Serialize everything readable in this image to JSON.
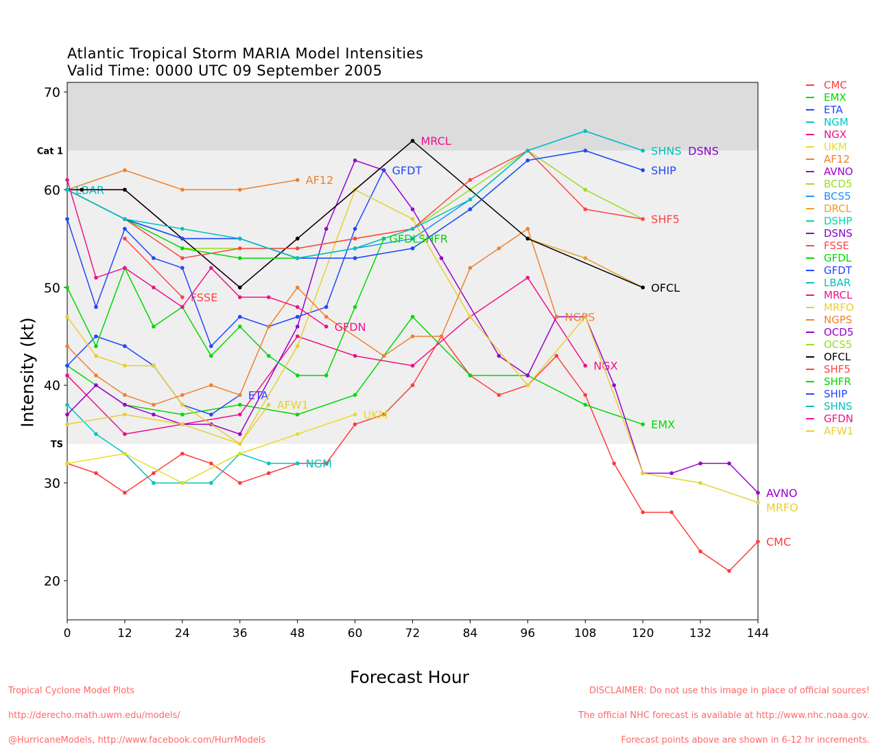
{
  "chart_data": {
    "type": "line",
    "title": "Atlantic Tropical Storm MARIA Model Intensities",
    "subtitle": "Valid Time: 0000 UTC 09 September 2005",
    "xlabel": "Forecast Hour",
    "ylabel": "Intensity (kt)",
    "xlim": [
      0,
      144
    ],
    "ylim": [
      16,
      71
    ],
    "xticks": [
      0,
      12,
      24,
      36,
      48,
      60,
      72,
      84,
      96,
      108,
      120,
      132,
      144
    ],
    "yticks": [
      20,
      30,
      40,
      50,
      60,
      70
    ],
    "thresholds": [
      {
        "label": "Cat 1",
        "value": 64
      },
      {
        "label": "TS",
        "value": 34
      }
    ],
    "legend_position": "right",
    "series": [
      {
        "name": "CMC",
        "color": "#ff3b3b",
        "label_at": 144,
        "points": [
          [
            0,
            32
          ],
          [
            6,
            31
          ],
          [
            12,
            29
          ],
          [
            18,
            31
          ],
          [
            24,
            33
          ],
          [
            30,
            32
          ],
          [
            36,
            30
          ],
          [
            42,
            31
          ],
          [
            48,
            32
          ],
          [
            54,
            32
          ],
          [
            60,
            36
          ],
          [
            66,
            37
          ],
          [
            72,
            40
          ],
          [
            78,
            45
          ],
          [
            84,
            41
          ],
          [
            90,
            39
          ],
          [
            96,
            40
          ],
          [
            102,
            43
          ],
          [
            108,
            39
          ],
          [
            114,
            32
          ],
          [
            120,
            27
          ],
          [
            126,
            27
          ],
          [
            132,
            23
          ],
          [
            138,
            21
          ],
          [
            144,
            24
          ]
        ]
      },
      {
        "name": "EMX",
        "color": "#00d800",
        "label_at": 120,
        "points": [
          [
            0,
            42
          ],
          [
            6,
            40
          ],
          [
            12,
            38
          ],
          [
            24,
            37
          ],
          [
            36,
            38
          ],
          [
            48,
            37
          ],
          [
            60,
            39
          ],
          [
            72,
            47
          ],
          [
            84,
            41
          ],
          [
            96,
            41
          ],
          [
            108,
            38
          ],
          [
            120,
            36
          ]
        ]
      },
      {
        "name": "ETA",
        "color": "#2244ff",
        "label_at": 36,
        "points": [
          [
            0,
            42
          ],
          [
            6,
            45
          ],
          [
            12,
            44
          ],
          [
            18,
            42
          ],
          [
            24,
            38
          ],
          [
            30,
            37
          ],
          [
            36,
            39
          ]
        ]
      },
      {
        "name": "NGM",
        "color": "#00c4c4",
        "label_at": 48,
        "points": [
          [
            0,
            38
          ],
          [
            6,
            35
          ],
          [
            12,
            33
          ],
          [
            18,
            30
          ],
          [
            24,
            30
          ],
          [
            30,
            30
          ],
          [
            36,
            33
          ],
          [
            42,
            32
          ],
          [
            48,
            32
          ]
        ]
      },
      {
        "name": "NGX",
        "color": "#ee1188",
        "label_at": 108,
        "points": [
          [
            0,
            41
          ],
          [
            12,
            35
          ],
          [
            24,
            36
          ],
          [
            36,
            37
          ],
          [
            48,
            45
          ],
          [
            60,
            43
          ],
          [
            72,
            42
          ],
          [
            84,
            47
          ],
          [
            96,
            51
          ],
          [
            108,
            42
          ]
        ]
      },
      {
        "name": "UKM",
        "color": "#e6dc28",
        "label_at": 60,
        "points": [
          [
            0,
            32
          ],
          [
            12,
            33
          ],
          [
            24,
            30
          ],
          [
            36,
            33
          ],
          [
            48,
            35
          ],
          [
            60,
            37
          ]
        ]
      },
      {
        "name": "AF12",
        "color": "#f08028",
        "label_at": 48,
        "points": [
          [
            0,
            60
          ],
          [
            12,
            62
          ],
          [
            24,
            60
          ],
          [
            36,
            60
          ],
          [
            48,
            61
          ]
        ]
      },
      {
        "name": "AVNO",
        "color": "#9900cc",
        "label_at": 144,
        "points": [
          [
            0,
            37
          ],
          [
            6,
            40
          ],
          [
            12,
            38
          ],
          [
            18,
            37
          ],
          [
            24,
            36
          ],
          [
            30,
            36
          ],
          [
            36,
            35
          ],
          [
            48,
            46
          ],
          [
            54,
            56
          ],
          [
            60,
            63
          ],
          [
            66,
            62
          ],
          [
            72,
            58
          ],
          [
            78,
            53
          ],
          [
            90,
            43
          ],
          [
            96,
            41
          ],
          [
            102,
            47
          ],
          [
            108,
            47
          ],
          [
            114,
            40
          ],
          [
            120,
            31
          ],
          [
            126,
            31
          ],
          [
            132,
            32
          ],
          [
            138,
            32
          ],
          [
            144,
            29
          ]
        ]
      },
      {
        "name": "BCD5",
        "color": "#99dd22",
        "label_at": null,
        "points": [
          [
            0,
            60
          ],
          [
            12,
            57
          ],
          [
            24,
            54
          ],
          [
            36,
            54
          ],
          [
            48,
            54
          ],
          [
            60,
            55
          ],
          [
            72,
            56
          ],
          [
            84,
            60
          ],
          [
            96,
            64
          ],
          [
            108,
            60
          ],
          [
            120,
            57
          ]
        ]
      },
      {
        "name": "BCS5",
        "color": "#1890ff",
        "label_at": null,
        "points": [
          [
            0,
            60
          ],
          [
            12,
            57
          ],
          [
            24,
            55
          ],
          [
            36,
            55
          ],
          [
            48,
            53
          ],
          [
            60,
            54
          ],
          [
            72,
            55
          ],
          [
            84,
            59
          ],
          [
            96,
            64
          ],
          [
            108,
            66
          ],
          [
            120,
            64
          ]
        ]
      },
      {
        "name": "DRCL",
        "color": "#e8a020",
        "label_at": null,
        "points": [
          [
            96,
            55
          ],
          [
            108,
            53
          ],
          [
            120,
            50
          ]
        ]
      },
      {
        "name": "DSHP",
        "color": "#00d8a0",
        "label_at": null,
        "points": [
          [
            0,
            60
          ],
          [
            12,
            57
          ],
          [
            24,
            55
          ],
          [
            36,
            55
          ],
          [
            48,
            53
          ],
          [
            60,
            53
          ],
          [
            72,
            54
          ],
          [
            84,
            58
          ],
          [
            96,
            63
          ],
          [
            108,
            64
          ],
          [
            120,
            62
          ]
        ]
      },
      {
        "name": "DSNS",
        "color": "#8800cc",
        "label_at": null,
        "points": []
      },
      {
        "name": "FSSE",
        "color": "#ff4444",
        "label_at": 24,
        "points": [
          [
            12,
            55
          ],
          [
            24,
            49
          ]
        ]
      },
      {
        "name": "GFDL",
        "color": "#00d800",
        "label_at": null,
        "points": [
          [
            0,
            50
          ],
          [
            6,
            44
          ],
          [
            12,
            52
          ],
          [
            18,
            46
          ],
          [
            24,
            48
          ],
          [
            30,
            43
          ],
          [
            36,
            46
          ],
          [
            42,
            43
          ],
          [
            48,
            41
          ],
          [
            54,
            41
          ],
          [
            60,
            48
          ],
          [
            66,
            55
          ]
        ]
      },
      {
        "name": "GFDT",
        "color": "#2244ff",
        "label_at": 66,
        "points": [
          [
            0,
            57
          ],
          [
            6,
            48
          ],
          [
            12,
            56
          ],
          [
            18,
            53
          ],
          [
            24,
            52
          ],
          [
            30,
            44
          ],
          [
            36,
            47
          ],
          [
            42,
            46
          ],
          [
            48,
            47
          ],
          [
            54,
            48
          ],
          [
            60,
            56
          ],
          [
            66,
            62
          ]
        ]
      },
      {
        "name": "LBAR",
        "color": "#00c0c0",
        "label_at": 0,
        "points": [
          [
            0,
            60
          ]
        ]
      },
      {
        "name": "MRCL",
        "color": "#ee1188",
        "label_at": 72,
        "points": [
          [
            0,
            60
          ],
          [
            12,
            60
          ],
          [
            36,
            50
          ],
          [
            48,
            55
          ],
          [
            72,
            65
          ]
        ]
      },
      {
        "name": "MRFO",
        "color": "#e6d030",
        "label_at": 144,
        "points": [
          [
            0,
            47
          ],
          [
            6,
            43
          ],
          [
            12,
            42
          ],
          [
            18,
            42
          ],
          [
            24,
            38
          ],
          [
            36,
            34
          ],
          [
            48,
            44
          ],
          [
            60,
            60
          ],
          [
            72,
            57
          ],
          [
            84,
            47
          ],
          [
            96,
            40
          ],
          [
            108,
            47
          ],
          [
            120,
            31
          ],
          [
            132,
            30
          ],
          [
            144,
            28
          ]
        ]
      },
      {
        "name": "NGPS",
        "color": "#f08030",
        "label_at": 102,
        "points": [
          [
            0,
            44
          ],
          [
            6,
            41
          ],
          [
            12,
            39
          ],
          [
            18,
            38
          ],
          [
            24,
            39
          ],
          [
            30,
            40
          ],
          [
            36,
            39
          ],
          [
            42,
            46
          ],
          [
            48,
            50
          ],
          [
            54,
            47
          ],
          [
            66,
            43
          ],
          [
            72,
            45
          ],
          [
            78,
            45
          ],
          [
            84,
            52
          ],
          [
            90,
            54
          ],
          [
            96,
            56
          ],
          [
            102,
            47
          ]
        ]
      },
      {
        "name": "OCD5",
        "color": "#9900cc",
        "label_at": null,
        "points": []
      },
      {
        "name": "OCS5",
        "color": "#99dd22",
        "label_at": null,
        "points": []
      },
      {
        "name": "OFCL",
        "color": "#000000",
        "label_at": 120,
        "points": [
          [
            0,
            60
          ],
          [
            3,
            60
          ],
          [
            12,
            60
          ],
          [
            36,
            50
          ],
          [
            48,
            55
          ],
          [
            72,
            65
          ],
          [
            96,
            55
          ],
          [
            120,
            50
          ]
        ]
      },
      {
        "name": "SHF5",
        "color": "#ff4444",
        "label_at": 120,
        "points": [
          [
            0,
            60
          ],
          [
            12,
            57
          ],
          [
            24,
            53
          ],
          [
            36,
            54
          ],
          [
            48,
            54
          ],
          [
            60,
            55
          ],
          [
            72,
            56
          ],
          [
            84,
            61
          ],
          [
            96,
            64
          ],
          [
            108,
            58
          ],
          [
            120,
            57
          ]
        ]
      },
      {
        "name": "SHFR",
        "color": "#00d800",
        "label_at": null,
        "points": [
          [
            0,
            60
          ],
          [
            12,
            57
          ],
          [
            24,
            54
          ],
          [
            36,
            53
          ],
          [
            48,
            53
          ],
          [
            60,
            54
          ],
          [
            66,
            55
          ]
        ]
      },
      {
        "name": "SHIP",
        "color": "#2244ff",
        "label_at": 120,
        "points": [
          [
            0,
            60
          ],
          [
            12,
            57
          ],
          [
            24,
            55
          ],
          [
            36,
            55
          ],
          [
            48,
            53
          ],
          [
            60,
            53
          ],
          [
            72,
            54
          ],
          [
            84,
            58
          ],
          [
            96,
            63
          ],
          [
            108,
            64
          ],
          [
            120,
            62
          ]
        ]
      },
      {
        "name": "SHNS",
        "color": "#00c0c0",
        "label_at": 120,
        "points": [
          [
            0,
            60
          ],
          [
            12,
            57
          ],
          [
            24,
            56
          ],
          [
            36,
            55
          ],
          [
            48,
            53
          ],
          [
            60,
            54
          ],
          [
            72,
            56
          ],
          [
            84,
            59
          ],
          [
            96,
            64
          ],
          [
            108,
            66
          ],
          [
            120,
            64
          ]
        ]
      },
      {
        "name": "GFDN",
        "color": "#ee1188",
        "label_at": 54,
        "points": [
          [
            0,
            61
          ],
          [
            6,
            51
          ],
          [
            12,
            52
          ],
          [
            18,
            50
          ],
          [
            24,
            48
          ],
          [
            30,
            52
          ],
          [
            36,
            49
          ],
          [
            42,
            49
          ],
          [
            48,
            48
          ],
          [
            54,
            46
          ]
        ]
      },
      {
        "name": "AFW1",
        "color": "#e6d030",
        "label_at": 42,
        "points": [
          [
            0,
            36
          ],
          [
            12,
            37
          ],
          [
            24,
            36
          ],
          [
            36,
            34
          ],
          [
            42,
            38
          ]
        ]
      }
    ],
    "annotations": [
      "GFDLSHFR",
      "DSNS"
    ]
  },
  "footer": {
    "left": [
      "Tropical Cyclone Model Plots",
      "http://derecho.math.uwm.edu/models/",
      "@HurricaneModels, http://www.facebook.com/HurrModels"
    ],
    "right": [
      "DISCLAIMER: Do not use this image in place of official sources!",
      "The official NHC forecast is available at http://www.nhc.noaa.gov.",
      "Forecast points above are shown in 6-12 hr increments."
    ]
  }
}
